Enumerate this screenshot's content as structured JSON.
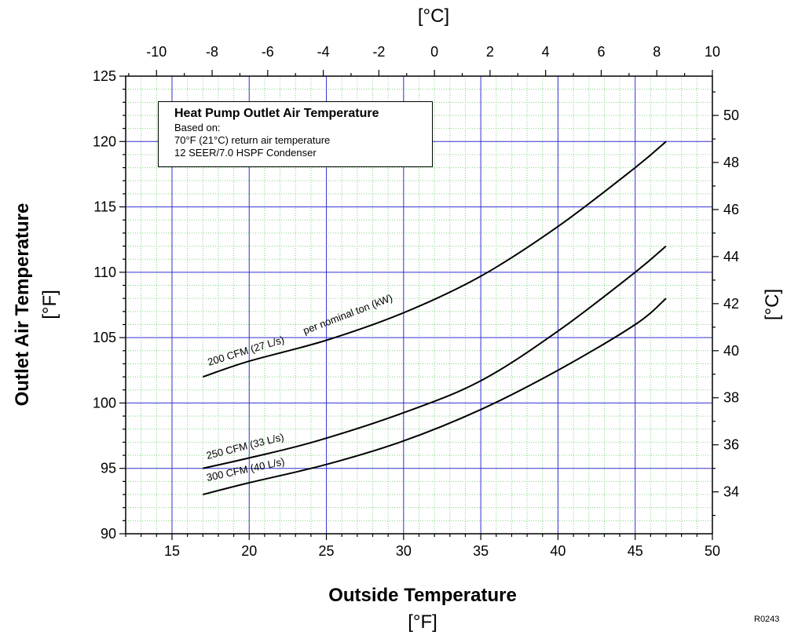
{
  "chart_data": {
    "type": "line",
    "title": "Heat Pump Outlet Air Temperature",
    "subtitle_lines": [
      "Based on:",
      "70°F (21°C) return air temperature",
      "12 SEER/7.0 HSPF Condenser"
    ],
    "xlabel": "Outside Temperature",
    "xlabel_unit": "[°F]",
    "x2label_unit": "[°C]",
    "ylabel": "Outlet Air Temperature",
    "ylabel_unit": "[°F]",
    "y2label_unit": "[°C]",
    "xlim": [
      12,
      50
    ],
    "ylim": [
      90,
      125
    ],
    "x2lim": [
      -11.11,
      10
    ],
    "y2lim": [
      32.22,
      51.67
    ],
    "x_ticks": [
      15,
      20,
      25,
      30,
      35,
      40,
      45,
      50
    ],
    "y_ticks": [
      90,
      95,
      100,
      105,
      110,
      115,
      120,
      125
    ],
    "x2_ticks": [
      -10,
      -8,
      -6,
      -4,
      -2,
      0,
      2,
      4,
      6,
      8,
      10
    ],
    "y2_ticks": [
      34,
      36,
      38,
      40,
      42,
      44,
      46,
      48,
      50
    ],
    "grid": true,
    "series": [
      {
        "name": "200 CFM (27 L/s)",
        "x": [
          17,
          20,
          25,
          30,
          35,
          40,
          45,
          47
        ],
        "y": [
          102,
          103.2,
          104.8,
          106.9,
          109.7,
          113.5,
          118,
          120
        ]
      },
      {
        "name": "250 CFM (33 L/s)",
        "x": [
          17,
          20,
          24.4,
          30.1,
          35,
          40,
          45,
          47
        ],
        "y": [
          95,
          95.8,
          97.1,
          99.3,
          101.7,
          105.5,
          110,
          112
        ]
      },
      {
        "name": "300 CFM (40 L/s)",
        "x": [
          17,
          20,
          25,
          30,
          35,
          40,
          45,
          47
        ],
        "y": [
          93,
          93.9,
          95.3,
          97.1,
          99.5,
          102.5,
          106,
          108
        ]
      }
    ],
    "annotations": [
      "per nominal ton (kW)"
    ]
  },
  "figure_code": "R0243"
}
